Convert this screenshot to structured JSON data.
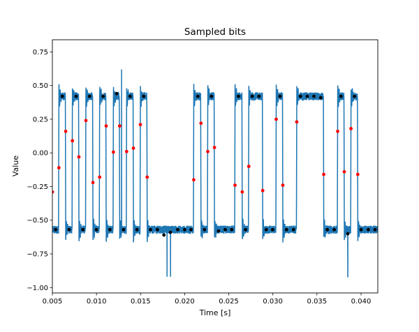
{
  "chart_data": {
    "type": "line",
    "title": "Sampled bits",
    "xlabel": "Time [s]",
    "ylabel": "Value",
    "xlim": [
      0.005,
      0.0419
    ],
    "ylim": [
      -1.04,
      0.84
    ],
    "grid": false,
    "xticks": [
      "0.005",
      "0.010",
      "0.015",
      "0.020",
      "0.025",
      "0.030",
      "0.035",
      "0.040"
    ],
    "yticks": [
      "0.75",
      "0.50",
      "0.25",
      "0.00",
      "−0.25",
      "−0.50",
      "−0.75",
      "−1.00"
    ],
    "colors": {
      "signal": "#1f77b4",
      "bit_samples": "#000000",
      "edge_samples": "#ff0000"
    },
    "signal": {
      "high": 0.42,
      "low": -0.57,
      "start_level": "low",
      "transitions": [
        0.00574,
        0.00651,
        0.00727,
        0.00801,
        0.0088,
        0.0096,
        0.01036,
        0.0111,
        0.01192,
        0.01263,
        0.01342,
        0.01419,
        0.01498,
        0.01575,
        0.02103,
        0.02185,
        0.02262,
        0.02338,
        0.02571,
        0.02653,
        0.02727,
        0.02885,
        0.03038,
        0.03113,
        0.03271,
        0.03577,
        0.03735,
        0.0381,
        0.03886,
        0.03963
      ],
      "spikes": [
        [
          0.01285,
          0.62
        ],
        [
          0.018,
          -0.92
        ],
        [
          0.0184,
          -0.92
        ],
        [
          0.0385,
          -0.92
        ]
      ]
    },
    "bit_samples": [
      [
        0.00537,
        -0.57
      ],
      [
        0.00613,
        0.42
      ],
      [
        0.0069,
        -0.57
      ],
      [
        0.00769,
        0.42
      ],
      [
        0.00846,
        -0.57
      ],
      [
        0.00922,
        0.42
      ],
      [
        0.01,
        -0.57
      ],
      [
        0.01076,
        0.42
      ],
      [
        0.01152,
        -0.57
      ],
      [
        0.01229,
        0.44
      ],
      [
        0.01306,
        -0.57
      ],
      [
        0.01382,
        0.42
      ],
      [
        0.01459,
        -0.57
      ],
      [
        0.01536,
        0.42
      ],
      [
        0.01612,
        -0.57
      ],
      [
        0.01691,
        -0.57
      ],
      [
        0.01765,
        -0.61
      ],
      [
        0.01839,
        -0.59
      ],
      [
        0.01921,
        -0.57
      ],
      [
        0.02,
        -0.57
      ],
      [
        0.02071,
        -0.57
      ],
      [
        0.0215,
        0.42
      ],
      [
        0.02225,
        -0.57
      ],
      [
        0.02304,
        0.42
      ],
      [
        0.02384,
        -0.58
      ],
      [
        0.0246,
        -0.57
      ],
      [
        0.02534,
        -0.57
      ],
      [
        0.0261,
        0.42
      ],
      [
        0.0269,
        -0.57
      ],
      [
        0.02766,
        0.42
      ],
      [
        0.02843,
        0.42
      ],
      [
        0.02925,
        -0.57
      ],
      [
        0.02998,
        -0.57
      ],
      [
        0.03081,
        0.42
      ],
      [
        0.03155,
        -0.57
      ],
      [
        0.03234,
        -0.57
      ],
      [
        0.03313,
        0.42
      ],
      [
        0.0339,
        0.42
      ],
      [
        0.03466,
        0.42
      ],
      [
        0.03543,
        0.41
      ],
      [
        0.03617,
        -0.57
      ],
      [
        0.03696,
        -0.57
      ],
      [
        0.03773,
        0.42
      ],
      [
        0.0385,
        -0.6
      ],
      [
        0.03926,
        0.42
      ],
      [
        0.04,
        -0.57
      ],
      [
        0.04082,
        -0.57
      ],
      [
        0.04158,
        -0.57
      ]
    ],
    "edge_samples": [
      [
        0.005,
        -0.29
      ],
      [
        0.00574,
        -0.11
      ],
      [
        0.00651,
        0.16
      ],
      [
        0.00727,
        0.09
      ],
      [
        0.00801,
        -0.03
      ],
      [
        0.0088,
        0.24
      ],
      [
        0.0096,
        -0.22
      ],
      [
        0.01036,
        -0.18
      ],
      [
        0.0111,
        0.2
      ],
      [
        0.01192,
        0.006
      ],
      [
        0.01263,
        0.2
      ],
      [
        0.01342,
        0.01
      ],
      [
        0.01419,
        0.035
      ],
      [
        0.01498,
        0.21
      ],
      [
        0.01575,
        -0.18
      ],
      [
        0.02103,
        -0.2
      ],
      [
        0.02185,
        0.22
      ],
      [
        0.02262,
        0.01
      ],
      [
        0.02338,
        0.04
      ],
      [
        0.02571,
        -0.24
      ],
      [
        0.02653,
        -0.29
      ],
      [
        0.02727,
        -0.1
      ],
      [
        0.02885,
        -0.28
      ],
      [
        0.03038,
        0.25
      ],
      [
        0.03113,
        -0.24
      ],
      [
        0.03271,
        0.23
      ],
      [
        0.03577,
        -0.16
      ],
      [
        0.03735,
        0.16
      ],
      [
        0.0381,
        -0.14
      ],
      [
        0.03886,
        0.18
      ],
      [
        0.03963,
        -0.16
      ]
    ]
  }
}
